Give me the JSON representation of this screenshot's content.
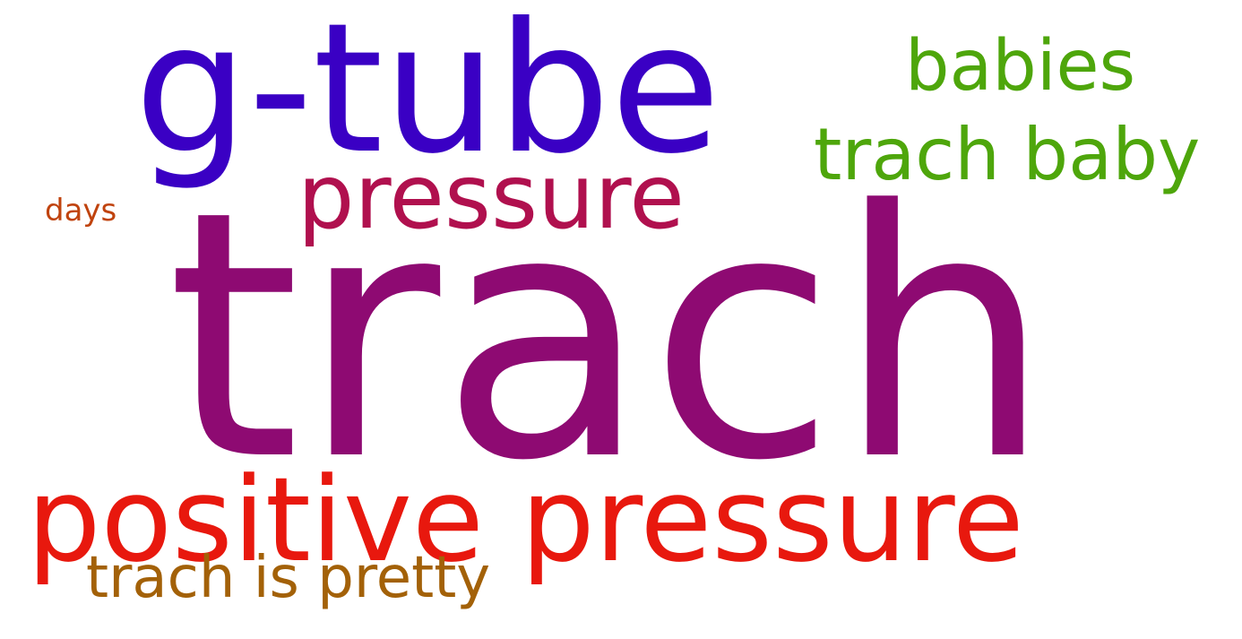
{
  "word_cloud": {
    "words": [
      {
        "text": "trach",
        "color": "#8e0a72"
      },
      {
        "text": "g-tube",
        "color": "#3a00c4"
      },
      {
        "text": "positive pressure",
        "color": "#e8180e"
      },
      {
        "text": "pressure",
        "color": "#b0104e"
      },
      {
        "text": "trach baby",
        "color": "#4ea60b"
      },
      {
        "text": "babies",
        "color": "#4ea60b"
      },
      {
        "text": "trach is pretty",
        "color": "#a36108"
      },
      {
        "text": "days",
        "color": "#c0430e"
      }
    ]
  }
}
